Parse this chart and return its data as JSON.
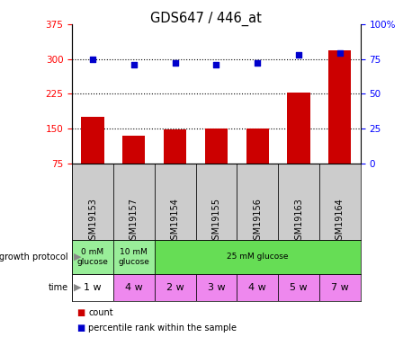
{
  "title": "GDS647 / 446_at",
  "samples": [
    "GSM19153",
    "GSM19157",
    "GSM19154",
    "GSM19155",
    "GSM19156",
    "GSM19163",
    "GSM19164"
  ],
  "bar_values": [
    175,
    135,
    148,
    151,
    151,
    228,
    318
  ],
  "dot_values": [
    75,
    71,
    72,
    71,
    72,
    78,
    79
  ],
  "bar_color": "#cc0000",
  "dot_color": "#0000cc",
  "ylim_left": [
    75,
    375
  ],
  "ylim_right": [
    0,
    100
  ],
  "yticks_left": [
    75,
    150,
    225,
    300,
    375
  ],
  "yticks_right": [
    0,
    25,
    50,
    75,
    100
  ],
  "hlines": [
    150,
    225,
    300
  ],
  "protocol_data": [
    {
      "span": [
        0,
        1
      ],
      "label": "0 mM\nglucose",
      "color": "#99ee99"
    },
    {
      "span": [
        1,
        2
      ],
      "label": "10 mM\nglucose",
      "color": "#99ee99"
    },
    {
      "span": [
        2,
        7
      ],
      "label": "25 mM glucose",
      "color": "#66dd55"
    }
  ],
  "time_labels": [
    "1 w",
    "4 w",
    "2 w",
    "3 w",
    "4 w",
    "5 w",
    "7 w"
  ],
  "time_colors": [
    "#ffffff",
    "#ee88ee",
    "#ee88ee",
    "#ee88ee",
    "#ee88ee",
    "#ee88ee",
    "#ee88ee"
  ],
  "sample_bg_color": "#cccccc",
  "legend_items": [
    "count",
    "percentile rank within the sample"
  ],
  "legend_colors": [
    "#cc0000",
    "#0000cc"
  ]
}
